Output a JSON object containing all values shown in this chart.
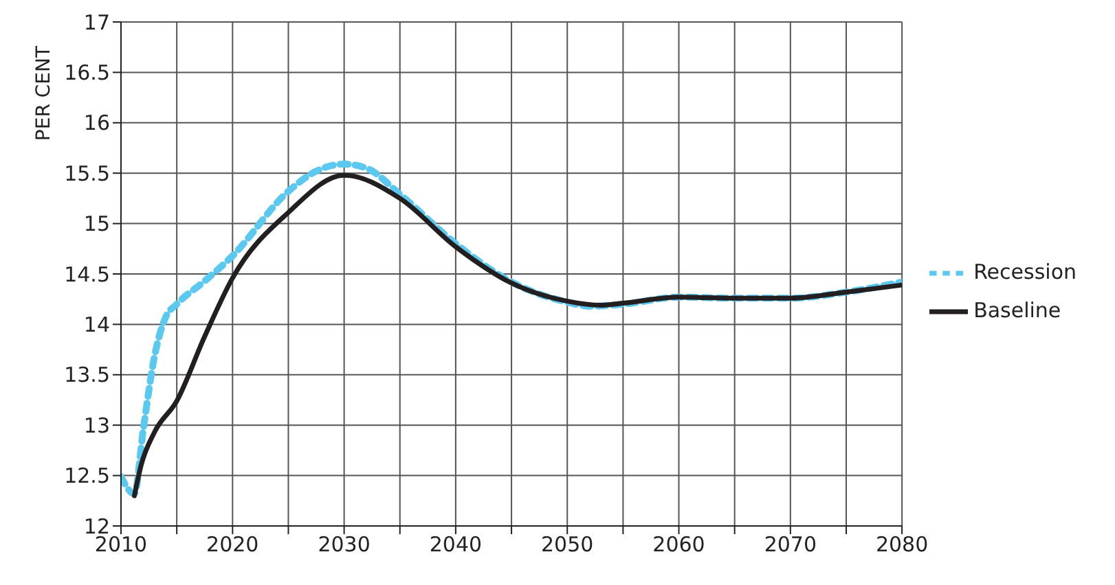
{
  "chart_data": {
    "type": "line",
    "ylabel": "PER CENT",
    "xlim": [
      2010,
      2080
    ],
    "xticks": [
      2010,
      2020,
      2030,
      2040,
      2050,
      2060,
      2070,
      2080
    ],
    "ylim": [
      12,
      17
    ],
    "yticks": [
      12,
      12.5,
      13,
      13.5,
      14,
      14.5,
      15,
      15.5,
      16,
      16.5,
      17
    ],
    "grid": true,
    "legend": "right",
    "marker": "none",
    "series": [
      {
        "name": "Recession",
        "color": "#5bc8f0",
        "line_style": "dashed",
        "x": [
          2010,
          2011.2,
          2012,
          2013,
          2014,
          2015,
          2017.5,
          2020,
          2025,
          2027.5,
          2030,
          2032,
          2035,
          2040,
          2045,
          2050,
          2052,
          2055,
          2060,
          2065,
          2070,
          2075,
          2080
        ],
        "values": [
          12.49,
          12.32,
          12.96,
          13.68,
          14.07,
          14.2,
          14.43,
          14.68,
          15.32,
          15.52,
          15.59,
          15.55,
          15.29,
          14.8,
          14.42,
          14.22,
          14.18,
          14.2,
          14.27,
          14.26,
          14.26,
          14.32,
          14.42
        ]
      },
      {
        "name": "Baseline",
        "color": "#231f20",
        "line_style": "solid",
        "x": [
          2011.2,
          2011.8,
          2013,
          2015,
          2017.5,
          2020,
          2025,
          2030,
          2035,
          2040,
          2045,
          2050,
          2053,
          2055,
          2060,
          2065,
          2070,
          2075,
          2080
        ],
        "values": [
          12.3,
          12.6,
          12.93,
          13.24,
          13.88,
          14.46,
          15.11,
          15.48,
          15.25,
          14.77,
          14.41,
          14.23,
          14.19,
          14.21,
          14.27,
          14.26,
          14.26,
          14.32,
          14.39
        ]
      }
    ]
  }
}
